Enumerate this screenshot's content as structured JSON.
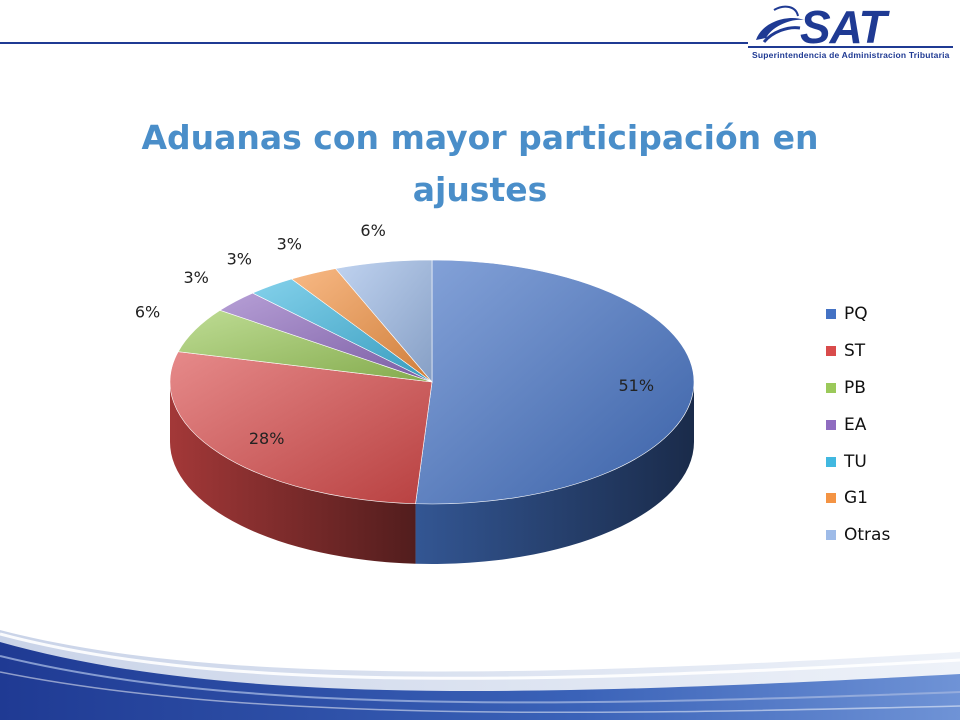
{
  "header": {
    "logo_text": "SAT",
    "logo_subtitle": "Superintendencia de Administracion Tributaria"
  },
  "colors": {
    "title": "#4a8ec9",
    "header_rule": "#1f3a93"
  },
  "chart_data": {
    "type": "pie",
    "title": "Aduanas con mayor participación en ajustes",
    "legend_position": "right",
    "slices": [
      {
        "name": "PQ",
        "value": 51,
        "label": "51%",
        "color": "#4472c4"
      },
      {
        "name": "ST",
        "value": 28,
        "label": "28%",
        "color": "#d94b4b"
      },
      {
        "name": "PB",
        "value": 6,
        "label": "6%",
        "color": "#9bc95a"
      },
      {
        "name": "EA",
        "value": 3,
        "label": "3%",
        "color": "#8f6cc0"
      },
      {
        "name": "TU",
        "value": 3,
        "label": "3%",
        "color": "#41b8e0"
      },
      {
        "name": "G1",
        "value": 3,
        "label": "3%",
        "color": "#f49444"
      },
      {
        "name": "Otras",
        "value": 6,
        "label": "6%",
        "color": "#9ebbe8"
      }
    ]
  }
}
